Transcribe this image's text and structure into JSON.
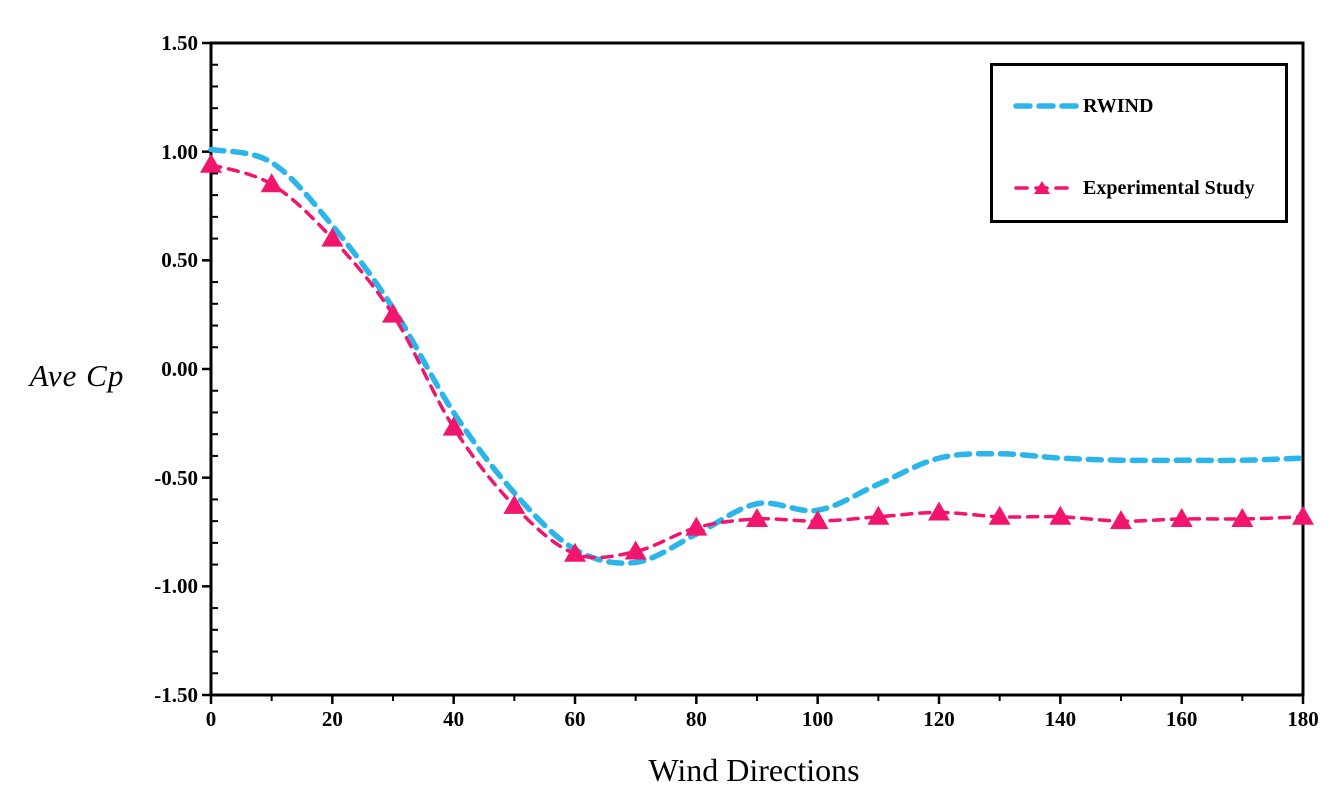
{
  "chart_data": {
    "type": "line",
    "title": "",
    "xlabel": "Wind Directions",
    "ylabel": "Ave Cp",
    "x": [
      0,
      10,
      20,
      30,
      40,
      50,
      60,
      70,
      80,
      90,
      100,
      110,
      120,
      130,
      140,
      150,
      160,
      170,
      180
    ],
    "series": [
      {
        "name": "RWIND",
        "color": "#2bb5e9",
        "line_style": "dashed",
        "line_width": 5.5,
        "marker": "none",
        "values": [
          1.01,
          0.95,
          0.66,
          0.28,
          -0.2,
          -0.57,
          -0.83,
          -0.89,
          -0.76,
          -0.62,
          -0.65,
          -0.53,
          -0.41,
          -0.39,
          -0.41,
          -0.42,
          -0.42,
          -0.42,
          -0.41
        ]
      },
      {
        "name": "Experimental Study",
        "color": "#f2156e",
        "line_style": "dashed",
        "line_width": 3.5,
        "marker": "triangle",
        "values": [
          0.94,
          0.85,
          0.6,
          0.25,
          -0.27,
          -0.63,
          -0.85,
          -0.84,
          -0.73,
          -0.69,
          -0.7,
          -0.68,
          -0.66,
          -0.68,
          -0.68,
          -0.7,
          -0.69,
          -0.69,
          -0.68
        ]
      }
    ],
    "xlim": [
      0,
      180
    ],
    "ylim": [
      -1.5,
      1.5
    ],
    "x_ticklabels": [
      "0",
      "20",
      "40",
      "60",
      "80",
      "100",
      "120",
      "140",
      "160",
      "180"
    ],
    "y_ticklabels": [
      "1.50",
      "1.00",
      "0.50",
      "0.00",
      "-0.50",
      "-1.00",
      "-1.50"
    ],
    "x_major_interval": 20,
    "x_minor_interval": 10,
    "y_major_interval": 0.5,
    "y_minor_interval": 0.1,
    "grid": false,
    "smooth_lines": true,
    "legend_position": "top-right",
    "axis_color": "#000000"
  },
  "legend": {
    "items": [
      {
        "label": "RWIND"
      },
      {
        "label": "Experimental Study"
      }
    ]
  }
}
